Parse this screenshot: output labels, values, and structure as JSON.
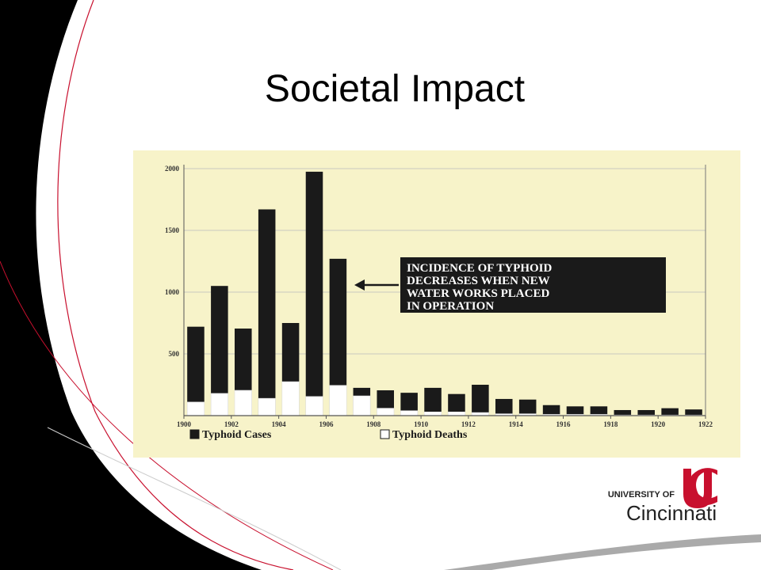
{
  "chart_data": {
    "type": "bar",
    "title": "Societal Impact",
    "x": [
      1900,
      1901,
      1902,
      1903,
      1904,
      1905,
      1906,
      1907,
      1908,
      1909,
      1910,
      1911,
      1912,
      1913,
      1914,
      1915,
      1916,
      1917,
      1918,
      1919,
      1920,
      1921
    ],
    "xlim": [
      1900,
      1922
    ],
    "xticks": [
      1900,
      1902,
      1904,
      1906,
      1908,
      1910,
      1912,
      1914,
      1916,
      1918,
      1920,
      1922
    ],
    "ylim": [
      0,
      2000
    ],
    "yticks": [
      500,
      1000,
      1500,
      2000
    ],
    "grid": true,
    "series": [
      {
        "name": "Typhoid Cases",
        "color": "#1a1a1a",
        "values": [
          720,
          1050,
          705,
          1670,
          750,
          1975,
          1270,
          225,
          205,
          185,
          225,
          175,
          250,
          135,
          130,
          85,
          75,
          75,
          45,
          45,
          60,
          50
        ]
      },
      {
        "name": "Typhoid Deaths",
        "color": "#ffffff",
        "values": [
          110,
          180,
          205,
          140,
          275,
          155,
          245,
          160,
          60,
          40,
          30,
          30,
          25,
          15,
          15,
          10,
          10,
          10,
          5,
          5,
          5,
          5
        ]
      }
    ],
    "annotation": [
      "INCIDENCE OF TYPHOID",
      "DECREASES WHEN NEW",
      "WATER WORKS PLACED",
      "IN OPERATION"
    ]
  },
  "logo": {
    "line1": "UNIVERSITY OF",
    "line2": "Cincinnati"
  }
}
